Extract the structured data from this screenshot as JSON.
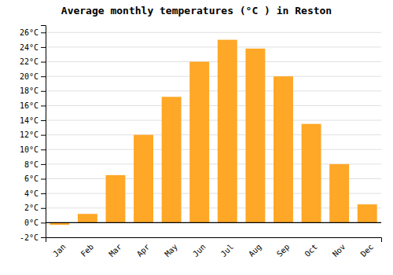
{
  "chart_data": {
    "type": "bar",
    "title": "Average monthly temperatures (°C ) in Reston",
    "categories": [
      "Jan",
      "Feb",
      "Mar",
      "Apr",
      "May",
      "Jun",
      "Jul",
      "Aug",
      "Sep",
      "Oct",
      "Nov",
      "Dec"
    ],
    "values": [
      -0.3,
      1.2,
      6.5,
      12.0,
      17.2,
      22.0,
      25.0,
      23.8,
      20.0,
      13.5,
      8.0,
      2.5
    ],
    "color": "#FFA726",
    "ylim": [
      -2,
      27
    ],
    "yticks": [
      {
        "value": -2,
        "label": "-2°C"
      },
      {
        "value": 0,
        "label": "0°C"
      },
      {
        "value": 2,
        "label": "2°C"
      },
      {
        "value": 4,
        "label": "4°C"
      },
      {
        "value": 6,
        "label": "6°C"
      },
      {
        "value": 8,
        "label": "8°C"
      },
      {
        "value": 10,
        "label": "10°C"
      },
      {
        "value": 12,
        "label": "12°C"
      },
      {
        "value": 14,
        "label": "14°C"
      },
      {
        "value": 16,
        "label": "16°C"
      },
      {
        "value": 18,
        "label": "18°C"
      },
      {
        "value": 20,
        "label": "20°C"
      },
      {
        "value": 22,
        "label": "22°C"
      },
      {
        "value": 24,
        "label": "24°C"
      },
      {
        "value": 26,
        "label": "26°C"
      }
    ],
    "grid": true
  }
}
